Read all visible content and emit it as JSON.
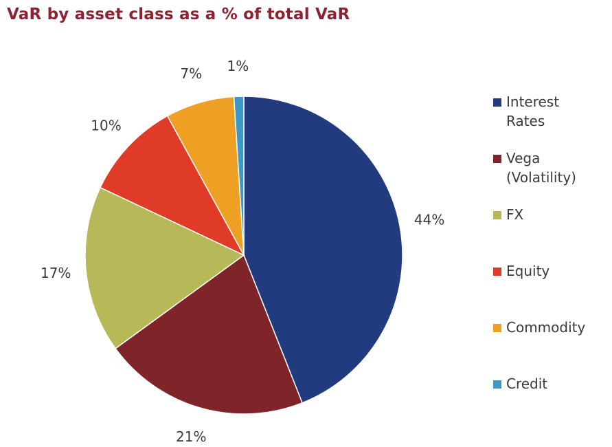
{
  "chart_data": {
    "type": "pie",
    "title": "VaR by asset class as a % of total VaR",
    "legend_position": "right",
    "slices": [
      {
        "name": "Interest Rates",
        "legend_label": "Interest\nRates",
        "value": 44,
        "label": "44%",
        "color": "#223a7e"
      },
      {
        "name": "Vega (Volatility)",
        "legend_label": "Vega\n(Volatility)",
        "value": 21,
        "label": "21%",
        "color": "#7f2529"
      },
      {
        "name": "FX",
        "legend_label": "FX",
        "value": 17,
        "label": "17%",
        "color": "#b7b858"
      },
      {
        "name": "Equity",
        "legend_label": "Equity",
        "value": 10,
        "label": "10%",
        "color": "#e03b27"
      },
      {
        "name": "Commodity",
        "legend_label": "Commodity",
        "value": 7,
        "label": "7%",
        "color": "#eda024"
      },
      {
        "name": "Credit",
        "legend_label": "Credit",
        "value": 1,
        "label": "1%",
        "color": "#3f99c4"
      }
    ]
  }
}
